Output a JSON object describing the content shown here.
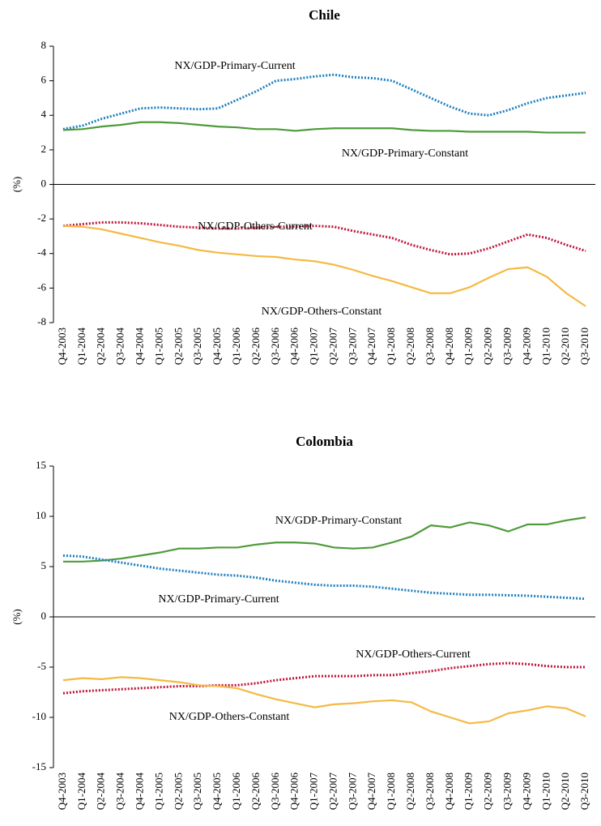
{
  "chart_data": [
    {
      "type": "line",
      "title": "Chile",
      "y_label": "(%)",
      "categories": [
        "Q4-2003",
        "Q1-2004",
        "Q2-2004",
        "Q3-2004",
        "Q4-2004",
        "Q1-2005",
        "Q2-2005",
        "Q3-2005",
        "Q4-2005",
        "Q1-2006",
        "Q2-2006",
        "Q3-2006",
        "Q4-2006",
        "Q1-2007",
        "Q2-2007",
        "Q3-2007",
        "Q4-2007",
        "Q1-2008",
        "Q2-2008",
        "Q3-2008",
        "Q4-2008",
        "Q1-2009",
        "Q2-2009",
        "Q3-2009",
        "Q4-2009",
        "Q1-2010",
        "Q2-2010",
        "Q3-2010"
      ],
      "ylim": [
        -8,
        8
      ],
      "yticks": [
        -8,
        -6,
        -4,
        -2,
        0,
        2,
        4,
        6,
        8
      ],
      "series": [
        {
          "name": "NX/GDP-Primary-Current",
          "color": "#1f7fc0",
          "style": "dotted",
          "values": [
            3.2,
            3.4,
            3.8,
            4.1,
            4.4,
            4.45,
            4.4,
            4.35,
            4.4,
            4.9,
            5.4,
            6.0,
            6.1,
            6.25,
            6.35,
            6.2,
            6.15,
            6.0,
            5.5,
            5.0,
            4.5,
            4.1,
            4.0,
            4.3,
            4.7,
            5.0,
            5.15,
            5.3
          ]
        },
        {
          "name": "NX/GDP-Primary-Constant",
          "color": "#4e9a3a",
          "style": "solid",
          "values": [
            3.15,
            3.2,
            3.35,
            3.45,
            3.6,
            3.6,
            3.55,
            3.45,
            3.35,
            3.3,
            3.2,
            3.2,
            3.1,
            3.2,
            3.25,
            3.25,
            3.25,
            3.25,
            3.15,
            3.1,
            3.1,
            3.05,
            3.05,
            3.05,
            3.05,
            3.0,
            3.0,
            3.0
          ]
        },
        {
          "name": "NX/GDP-Others-Current",
          "color": "#c0143c",
          "style": "dotted",
          "values": [
            -2.4,
            -2.3,
            -2.2,
            -2.2,
            -2.25,
            -2.35,
            -2.45,
            -2.5,
            -2.55,
            -2.55,
            -2.5,
            -2.45,
            -2.45,
            -2.4,
            -2.45,
            -2.7,
            -2.9,
            -3.1,
            -3.5,
            -3.8,
            -4.05,
            -4.0,
            -3.7,
            -3.3,
            -2.9,
            -3.1,
            -3.5,
            -3.85
          ]
        },
        {
          "name": "NX/GDP-Others-Constant",
          "color": "#f5b942",
          "style": "solid",
          "values": [
            -2.4,
            -2.45,
            -2.6,
            -2.85,
            -3.1,
            -3.35,
            -3.55,
            -3.8,
            -3.95,
            -4.05,
            -4.15,
            -4.2,
            -4.35,
            -4.45,
            -4.65,
            -4.95,
            -5.3,
            -5.6,
            -5.95,
            -6.3,
            -6.3,
            -5.95,
            -5.4,
            -4.9,
            -4.8,
            -5.35,
            -6.3,
            -7.05
          ]
        }
      ]
    },
    {
      "type": "line",
      "title": "Colombia",
      "y_label": "(%)",
      "categories": [
        "Q4-2003",
        "Q1-2004",
        "Q2-2004",
        "Q3-2004",
        "Q4-2004",
        "Q1-2005",
        "Q2-2005",
        "Q3-2005",
        "Q4-2005",
        "Q1-2006",
        "Q2-2006",
        "Q3-2006",
        "Q4-2006",
        "Q1-2007",
        "Q2-2007",
        "Q3-2007",
        "Q4-2007",
        "Q1-2008",
        "Q2-2008",
        "Q3-2008",
        "Q4-2008",
        "Q1-2009",
        "Q2-2009",
        "Q3-2009",
        "Q4-2009",
        "Q1-2010",
        "Q2-2010",
        "Q3-2010"
      ],
      "ylim": [
        -15,
        15
      ],
      "yticks": [
        -15,
        -10,
        -5,
        0,
        5,
        10,
        15
      ],
      "series": [
        {
          "name": "NX/GDP-Primary-Constant",
          "color": "#4e9a3a",
          "style": "solid",
          "values": [
            5.5,
            5.5,
            5.6,
            5.8,
            6.1,
            6.4,
            6.8,
            6.8,
            6.9,
            6.9,
            7.2,
            7.4,
            7.4,
            7.3,
            6.9,
            6.8,
            6.9,
            7.4,
            8.0,
            9.1,
            8.9,
            9.4,
            9.1,
            8.5,
            9.2,
            9.2,
            9.6,
            9.9
          ]
        },
        {
          "name": "NX/GDP-Primary-Current",
          "color": "#1f7fc0",
          "style": "dotted",
          "values": [
            6.1,
            6.0,
            5.7,
            5.4,
            5.1,
            4.8,
            4.6,
            4.4,
            4.2,
            4.1,
            3.9,
            3.6,
            3.4,
            3.2,
            3.1,
            3.1,
            3.0,
            2.8,
            2.6,
            2.4,
            2.3,
            2.2,
            2.2,
            2.15,
            2.1,
            2.0,
            1.9,
            1.8
          ]
        },
        {
          "name": "NX/GDP-Others-Current",
          "color": "#c0143c",
          "style": "dotted",
          "values": [
            -7.6,
            -7.4,
            -7.3,
            -7.2,
            -7.1,
            -7.0,
            -6.9,
            -6.9,
            -6.8,
            -6.8,
            -6.6,
            -6.3,
            -6.1,
            -5.9,
            -5.9,
            -5.9,
            -5.8,
            -5.8,
            -5.6,
            -5.4,
            -5.1,
            -4.9,
            -4.7,
            -4.6,
            -4.7,
            -4.9,
            -5.0,
            -5.0
          ]
        },
        {
          "name": "NX/GDP-Others-Constant",
          "color": "#f5b942",
          "style": "solid",
          "values": [
            -6.3,
            -6.1,
            -6.2,
            -6.0,
            -6.1,
            -6.3,
            -6.5,
            -6.8,
            -6.9,
            -7.1,
            -7.7,
            -8.2,
            -8.6,
            -9.0,
            -8.7,
            -8.6,
            -8.4,
            -8.3,
            -8.5,
            -9.4,
            -10.0,
            -10.6,
            -10.4,
            -9.6,
            -9.3,
            -8.9,
            -9.1,
            -9.9
          ]
        }
      ]
    }
  ]
}
